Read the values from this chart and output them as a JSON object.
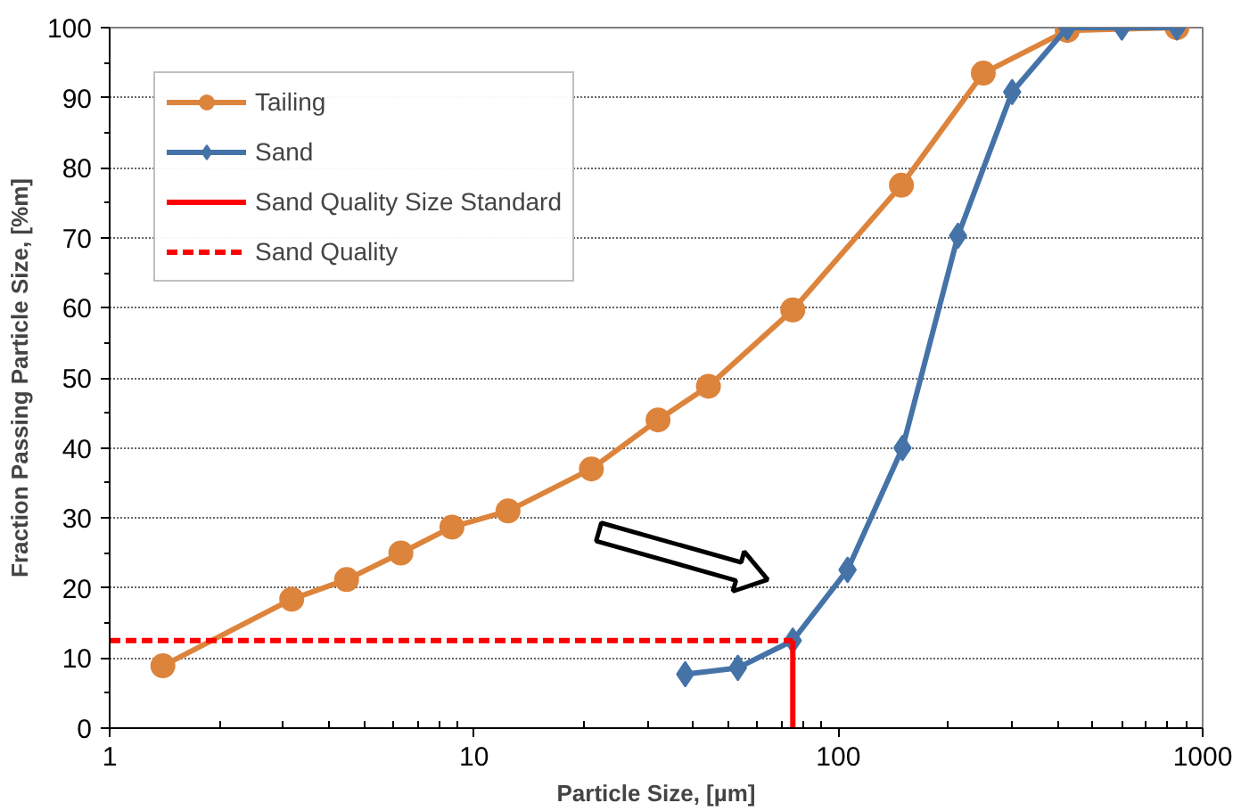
{
  "chart_data": {
    "type": "line",
    "xlabel": "Particle Size, [µm]",
    "ylabel": "Fraction Passing Particle Size, [%m]",
    "log": "x",
    "xlim": [
      1,
      1000
    ],
    "xticks": [
      1,
      10,
      100,
      1000
    ],
    "ylim": [
      0,
      100
    ],
    "yticks": [
      0,
      10,
      20,
      30,
      40,
      50,
      60,
      70,
      80,
      90,
      100
    ],
    "grid": "y",
    "legend": "top left",
    "line_style": "solid",
    "series": [
      {
        "name": "Tailing",
        "color": "#dd843c",
        "marker": "circle",
        "x": [
          1.4,
          3.16,
          4.47,
          6.3,
          8.7,
          12.4,
          21,
          32,
          44,
          75,
          149,
          250,
          425,
          850
        ],
        "values": [
          8.9,
          18.4,
          21.2,
          25,
          28.7,
          31,
          37,
          44,
          48.8,
          59.7,
          77.5,
          93.5,
          99.6,
          100
        ]
      },
      {
        "name": "Sand",
        "color": "#4573a8",
        "marker": "diamond",
        "x": [
          38,
          53,
          75,
          106,
          150,
          213,
          300,
          425,
          600,
          850
        ],
        "values": [
          7.7,
          8.6,
          12.5,
          22.6,
          40,
          70.3,
          90.8,
          100,
          100,
          100
        ]
      },
      {
        "name": "Sand Quality Size Standard",
        "color": "#ff0000",
        "marker": "none",
        "line_style": "solid",
        "x": [
          75,
          75
        ],
        "values": [
          0,
          12.5
        ]
      },
      {
        "name": "Sand Quality",
        "color": "#ff0000",
        "marker": "none",
        "line_style": "dashed",
        "x": [
          1,
          75
        ],
        "values": [
          12.5,
          12.5
        ]
      }
    ]
  }
}
